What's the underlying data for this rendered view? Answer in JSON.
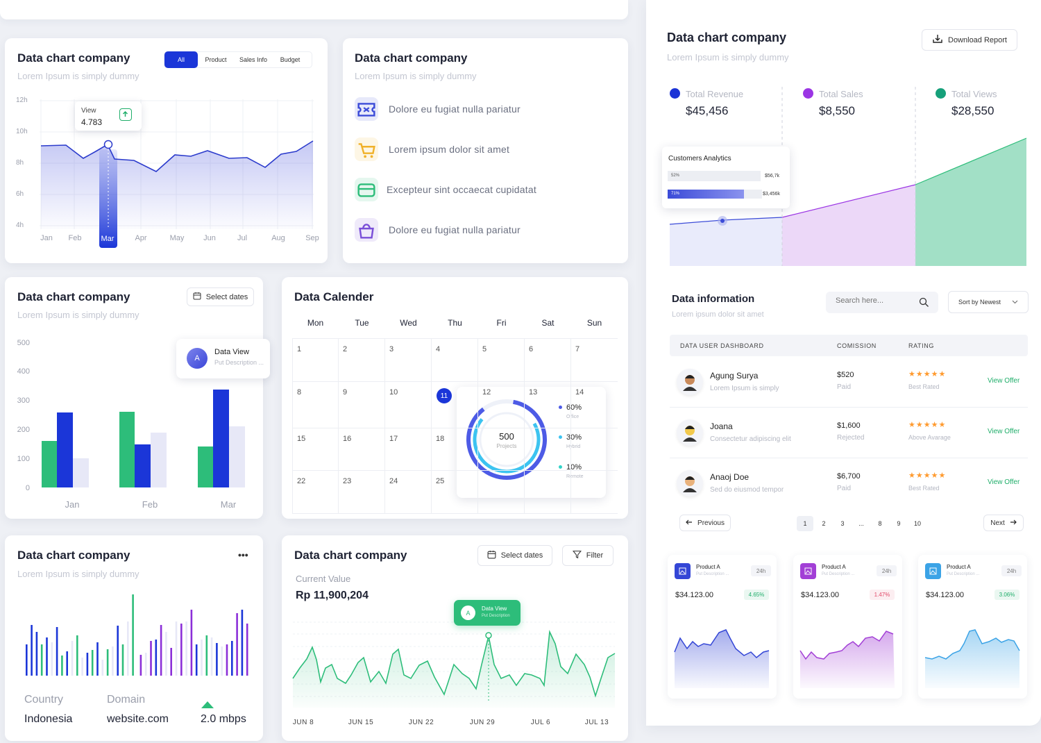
{
  "card1": {
    "title": "Data chart company",
    "subtitle": "Lorem Ipsum is simply dummy",
    "tabs": [
      "All",
      "Product",
      "Sales Info",
      "Budget"
    ],
    "tooltip": {
      "label": "View",
      "value": "4.783"
    },
    "y_ticks": [
      "12h",
      "10h",
      "8h",
      "6h",
      "4h"
    ],
    "months": [
      "Jan",
      "Feb",
      "Mar",
      "Apr",
      "May",
      "Jun",
      "Jul",
      "Aug",
      "Sep"
    ],
    "active_month": "Mar"
  },
  "card2": {
    "title": "Data chart company",
    "subtitle": "Lorem Ipsum is simply dummy",
    "items": [
      {
        "label": "Dolore eu fugiat nulla pariatur",
        "icon": "ticket-icon",
        "color": "#3b4bd8"
      },
      {
        "label": "Lorem ipsum dolor sit amet",
        "icon": "cart-icon",
        "color": "#f0b12a"
      },
      {
        "label": "Excepteur sint occaecat cupidatat",
        "icon": "card-icon",
        "color": "#2dbd7a"
      },
      {
        "label": "Dolore eu fugiat nulla pariatur",
        "icon": "bag-icon",
        "color": "#7a4fd8"
      }
    ]
  },
  "card3": {
    "title": "Data chart company",
    "subtitle": "Lorem Ipsum is simply dummy",
    "select_dates": "Select dates",
    "tooltip": {
      "avatar": "A",
      "title": "Data View",
      "desc": "Put Description ..."
    }
  },
  "calendar": {
    "title": "Data Calender",
    "days": [
      "Mon",
      "Tue",
      "Wed",
      "Thu",
      "Fri",
      "Sat",
      "Sun"
    ],
    "rows": [
      [
        "1",
        "2",
        "3",
        "4",
        "5",
        "6",
        "7"
      ],
      [
        "8",
        "9",
        "10",
        "11",
        "12",
        "13",
        "14"
      ],
      [
        "15",
        "16",
        "17",
        "18",
        "",
        "",
        ""
      ],
      [
        "22",
        "23",
        "24",
        "25",
        "",
        "",
        ""
      ]
    ],
    "today": "11",
    "donut": {
      "value": "500",
      "label": "Projects",
      "legend": [
        {
          "pct": "60%",
          "name": "Office",
          "color": "#4d5be6"
        },
        {
          "pct": "30%",
          "name": "Hybrid",
          "color": "#3cc3f0"
        },
        {
          "pct": "10%",
          "name": "Remote",
          "color": "#32d3c8"
        }
      ]
    }
  },
  "card5": {
    "title": "Data chart company",
    "subtitle": "Lorem Ipsum is simply dummy",
    "menu": "•••",
    "stats": [
      {
        "label": "Country",
        "value": "Indonesia"
      },
      {
        "label": "Domain",
        "value": "website.com"
      },
      {
        "label": "",
        "value": "2.0 mbps"
      }
    ]
  },
  "card6": {
    "title": "Data chart company",
    "select_dates": "Select dates",
    "filter": "Filter",
    "current_label": "Current Value",
    "current_value": "Rp 11,900,204",
    "tooltip": {
      "avatar": "A",
      "title": "Data View",
      "desc": "Put Description"
    },
    "x_labels": [
      "JUN 8",
      "JUN 15",
      "JUN 22",
      "JUN 29",
      "JUL 6",
      "JUL 13"
    ]
  },
  "right": {
    "title": "Data chart company",
    "subtitle": "Lorem Ipsum is simply dummy",
    "download": "Download Report",
    "kpis": [
      {
        "label": "Total Revenue",
        "value": "$45,456",
        "color": "#1b33d6"
      },
      {
        "label": "Total Sales",
        "value": "$8,550",
        "color": "#9b35e4"
      },
      {
        "label": "Total Views",
        "value": "$28,550",
        "color": "#16a07a"
      }
    ],
    "analytics": {
      "title": "Customers Analytics",
      "bars": [
        {
          "pct": "52%",
          "value": "$56,7k"
        },
        {
          "pct": "71%",
          "value": "$3,456k"
        }
      ]
    },
    "info": {
      "title": "Data information",
      "subtitle": "Lorem ipsum dolor sit amet",
      "search_placeholder": "Search here...",
      "sort": "Sort by Newest",
      "columns": [
        "DATA USER DASHBOARD",
        "COMISSION",
        "RATING"
      ],
      "rows": [
        {
          "name": "Agung Surya",
          "desc": "Lorem Ipsum is simply",
          "amount": "$520",
          "status": "Paid",
          "stars": "★★★★★",
          "rating": "Best Rated",
          "action": "View Offer"
        },
        {
          "name": "Joana",
          "desc": "Consectetur adipiscing elit",
          "amount": "$1,600",
          "status": "Rejected",
          "stars": "★★★★★",
          "rating": "Above Avarage",
          "action": "View Offer"
        },
        {
          "name": "Anaoj Doe",
          "desc": "Sed do eiusmod tempor",
          "amount": "$6,700",
          "status": "Paid",
          "stars": "★★★★★",
          "rating": "Best Rated",
          "action": "View Offer"
        }
      ],
      "prev": "Previous",
      "next": "Next",
      "pages": [
        "1",
        "2",
        "3",
        "...",
        "8",
        "9",
        "10"
      ]
    },
    "products": [
      {
        "name": "Product A",
        "desc": "Put Description ...",
        "badge": "24h",
        "price": "$34.123.00",
        "change": "4.65%",
        "color": "#3446d6",
        "changeColor": "#1fae6a"
      },
      {
        "name": "Product A",
        "desc": "Put Description ...",
        "badge": "24h",
        "price": "$34.123.00",
        "change": "1.47%",
        "color": "#a23fd6",
        "changeColor": "#e24a6a"
      },
      {
        "name": "Product A",
        "desc": "Put Description ...",
        "badge": "24h",
        "price": "$34.123.00",
        "change": "3.06%",
        "color": "#3ba3e6",
        "changeColor": "#1fae6a"
      }
    ]
  }
}
